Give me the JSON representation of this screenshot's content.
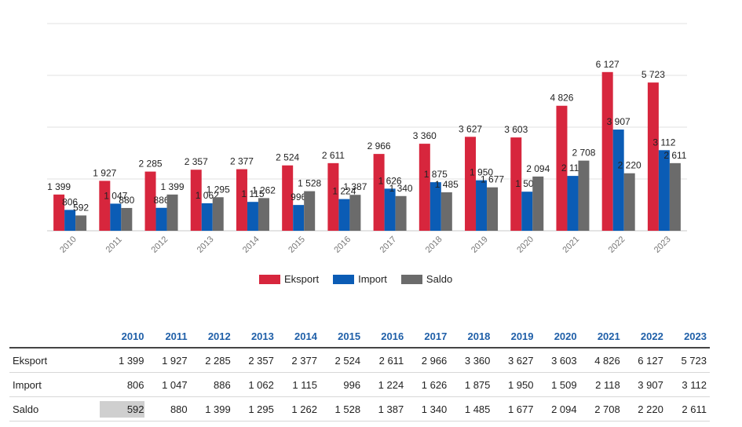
{
  "chart_data": {
    "type": "bar",
    "categories": [
      "2010",
      "2011",
      "2012",
      "2013",
      "2014",
      "2015",
      "2016",
      "2017",
      "2018",
      "2019",
      "2020",
      "2021",
      "2022",
      "2023"
    ],
    "series": [
      {
        "name": "Eksport",
        "color": "#d7263d",
        "values": [
          1399,
          1927,
          2285,
          2357,
          2377,
          2524,
          2611,
          2966,
          3360,
          3627,
          3603,
          4826,
          6127,
          5723
        ],
        "labels": [
          "1 399",
          "1 927",
          "2 285",
          "2 357",
          "2 377",
          "2 524",
          "2 611",
          "2 966",
          "3 360",
          "3 627",
          "3 603",
          "4 826",
          "6 127",
          "5 723"
        ]
      },
      {
        "name": "Import",
        "color": "#0b5cb5",
        "values": [
          806,
          1047,
          886,
          1062,
          1115,
          996,
          1224,
          1626,
          1875,
          1950,
          1509,
          2118,
          3907,
          3112
        ],
        "labels": [
          "806",
          "1 047",
          "886",
          "1 062",
          "1 115",
          "996",
          "1 224",
          "1 626",
          "1 875",
          "1 950",
          "1 509",
          "2 118",
          "3 907",
          "3 112"
        ]
      },
      {
        "name": "Saldo",
        "color": "#6b6b6b",
        "values": [
          592,
          880,
          1399,
          1295,
          1262,
          1528,
          1387,
          1340,
          1485,
          1677,
          2094,
          2708,
          2220,
          2611
        ],
        "labels": [
          "592",
          "880",
          "1 399",
          "1 295",
          "1 262",
          "1 528",
          "1 387",
          "1 340",
          "1 485",
          "1 677",
          "2 094",
          "2 708",
          "2 220",
          "2 611"
        ]
      }
    ],
    "ylim": [
      0,
      8000
    ],
    "grid": true,
    "legend": "bottom"
  },
  "table": {
    "years": [
      "2010",
      "2011",
      "2012",
      "2013",
      "2014",
      "2015",
      "2016",
      "2017",
      "2018",
      "2019",
      "2020",
      "2021",
      "2022",
      "2023"
    ],
    "rows": [
      {
        "label": "Eksport",
        "values": [
          "1 399",
          "1 927",
          "2 285",
          "2 357",
          "2 377",
          "2 524",
          "2 611",
          "2 966",
          "3 360",
          "3 627",
          "3 603",
          "4 826",
          "6 127",
          "5 723"
        ]
      },
      {
        "label": "Import",
        "values": [
          "806",
          "1 047",
          "886",
          "1 062",
          "1 115",
          "996",
          "1 224",
          "1 626",
          "1 875",
          "1 950",
          "1 509",
          "2 118",
          "3 907",
          "3 112"
        ]
      },
      {
        "label": "Saldo",
        "values": [
          "592",
          "880",
          "1 399",
          "1 295",
          "1 262",
          "1 528",
          "1 387",
          "1 340",
          "1 485",
          "1 677",
          "2 094",
          "2 708",
          "2 220",
          "2 611"
        ]
      }
    ]
  }
}
